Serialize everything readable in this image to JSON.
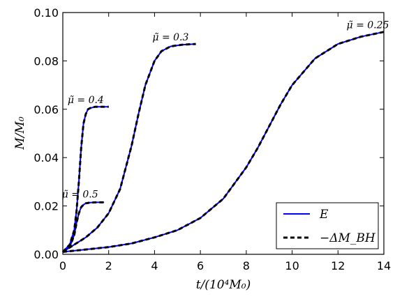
{
  "chart_data": {
    "type": "line",
    "xlabel": "t/(10⁴M₀)",
    "ylabel": "M/M₀",
    "xlim": [
      0,
      14
    ],
    "ylim": [
      0,
      0.1
    ],
    "x_ticks": [
      "0",
      "2",
      "4",
      "6",
      "8",
      "10",
      "12",
      "14"
    ],
    "y_ticks": [
      "0.00",
      "0.02",
      "0.04",
      "0.06",
      "0.08",
      "0.10"
    ],
    "grid": false,
    "legend_position": "lower-right",
    "legend": [
      {
        "label": "E",
        "style": "solid",
        "color": "#0000ff"
      },
      {
        "label": "−ΔM_BH",
        "style": "dashed",
        "color": "#000000"
      }
    ],
    "series": [
      {
        "label": "μ̃ = 0.5",
        "x": [
          0,
          0.3,
          0.5,
          0.6,
          0.7,
          0.8,
          0.9,
          1.0,
          1.2,
          1.5,
          1.8
        ],
        "y": [
          0.001,
          0.003,
          0.008,
          0.013,
          0.017,
          0.0195,
          0.0205,
          0.0211,
          0.0214,
          0.0215,
          0.0215
        ]
      },
      {
        "label": "μ̃ = 0.4",
        "x": [
          0,
          0.3,
          0.5,
          0.6,
          0.7,
          0.8,
          0.9,
          1.0,
          1.1,
          1.2,
          1.4,
          1.7,
          2.0
        ],
        "y": [
          0.001,
          0.004,
          0.01,
          0.018,
          0.03,
          0.044,
          0.054,
          0.058,
          0.06,
          0.0605,
          0.061,
          0.061,
          0.061
        ]
      },
      {
        "label": "μ̃ = 0.3",
        "x": [
          0,
          0.5,
          1.0,
          1.5,
          2.0,
          2.5,
          3.0,
          3.3,
          3.6,
          4.0,
          4.3,
          4.7,
          5.2,
          5.8
        ],
        "y": [
          0.001,
          0.004,
          0.007,
          0.011,
          0.017,
          0.027,
          0.045,
          0.058,
          0.07,
          0.08,
          0.084,
          0.086,
          0.0867,
          0.087
        ]
      },
      {
        "label": "μ̃ = 0.25",
        "x": [
          0,
          1,
          2,
          3,
          4,
          5,
          6,
          7,
          8,
          8.5,
          9,
          9.5,
          10,
          11,
          12,
          13,
          14
        ],
        "y": [
          0.001,
          0.002,
          0.003,
          0.0045,
          0.007,
          0.01,
          0.015,
          0.023,
          0.036,
          0.044,
          0.053,
          0.062,
          0.07,
          0.081,
          0.087,
          0.09,
          0.092
        ]
      }
    ],
    "annotations": [
      {
        "text": "μ̃ = 0.5",
        "x": 0.75,
        "y": 0.0235
      },
      {
        "text": "μ̃ = 0.4",
        "x": 1.0,
        "y": 0.0625
      },
      {
        "text": "μ̃ = 0.3",
        "x": 4.7,
        "y": 0.0885
      },
      {
        "text": "μ̃ = 0.25",
        "x": 13.3,
        "y": 0.0935
      }
    ]
  }
}
